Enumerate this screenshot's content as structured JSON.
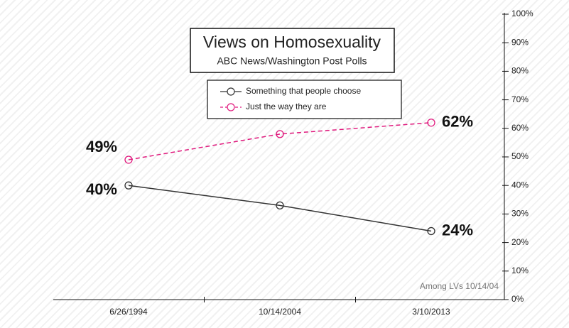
{
  "chart_data": {
    "type": "line",
    "title": "Views on Homosexuality",
    "subtitle": "ABC News/Washington Post Polls",
    "annotation": "Among LVs 10/14/04",
    "categories": [
      "6/26/1994",
      "10/14/2004",
      "3/10/2013"
    ],
    "series": [
      {
        "name": "Something that people choose",
        "color": "#333333",
        "dashed": false,
        "values": [
          40,
          33,
          24
        ],
        "value_labels": [
          "40%",
          null,
          "24%"
        ]
      },
      {
        "name": "Just the way they are",
        "color": "#e0197d",
        "dashed": true,
        "values": [
          49,
          58,
          62
        ],
        "value_labels": [
          "49%",
          null,
          "62%"
        ]
      }
    ],
    "ylim": [
      0,
      100
    ],
    "yticks": [
      {
        "value": 0,
        "label": "0%"
      },
      {
        "value": 10,
        "label": "10%"
      },
      {
        "value": 20,
        "label": "20%"
      },
      {
        "value": 30,
        "label": "30%"
      },
      {
        "value": 40,
        "label": "40%"
      },
      {
        "value": 50,
        "label": "50%"
      },
      {
        "value": 60,
        "label": "60%"
      },
      {
        "value": 70,
        "label": "70%"
      },
      {
        "value": 80,
        "label": "80%"
      },
      {
        "value": 90,
        "label": "90%"
      },
      {
        "value": 100,
        "label": "100%"
      }
    ],
    "y_axis_side": "right"
  }
}
